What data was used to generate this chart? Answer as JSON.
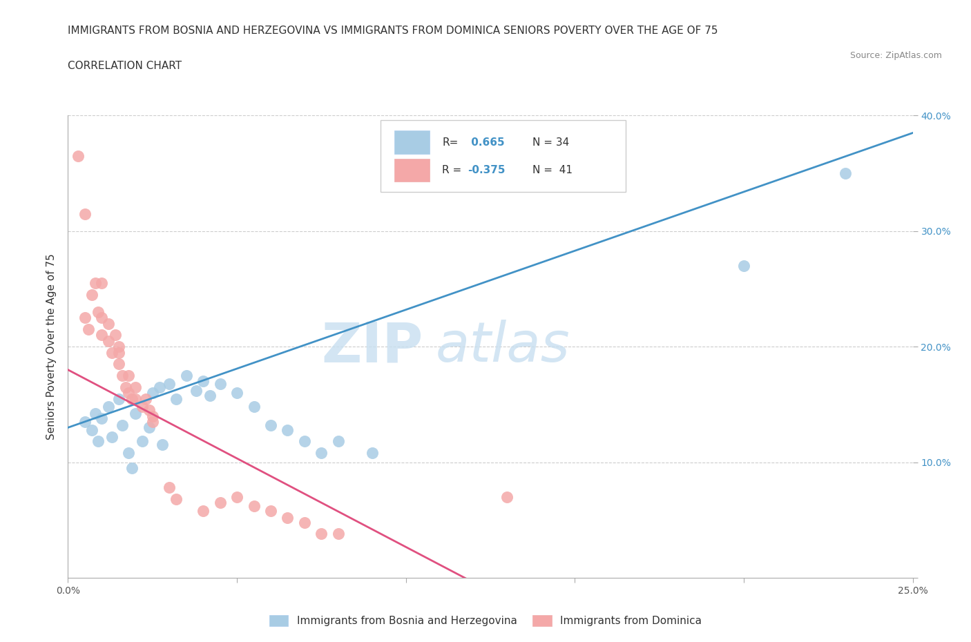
{
  "title_line1": "IMMIGRANTS FROM BOSNIA AND HERZEGOVINA VS IMMIGRANTS FROM DOMINICA SENIORS POVERTY OVER THE AGE OF 75",
  "title_line2": "CORRELATION CHART",
  "source_text": "Source: ZipAtlas.com",
  "ylabel": "Seniors Poverty Over the Age of 75",
  "xlim": [
    0.0,
    0.25
  ],
  "ylim": [
    0.0,
    0.4
  ],
  "watermark_zip": "ZIP",
  "watermark_atlas": "atlas",
  "legend_blue_label": "Immigrants from Bosnia and Herzegovina",
  "legend_pink_label": "Immigrants from Dominica",
  "blue_color": "#a8cce4",
  "pink_color": "#f4a8a8",
  "blue_line_color": "#4292c6",
  "pink_line_color": "#e05080",
  "blue_r_text": "R=",
  "blue_r_val": " 0.665",
  "blue_n_text": "N = 34",
  "pink_r_text": "R =",
  "pink_r_val": "-0.375",
  "pink_n_text": "N =  41",
  "blue_points": [
    [
      0.005,
      0.135
    ],
    [
      0.007,
      0.128
    ],
    [
      0.008,
      0.142
    ],
    [
      0.009,
      0.118
    ],
    [
      0.01,
      0.138
    ],
    [
      0.012,
      0.148
    ],
    [
      0.013,
      0.122
    ],
    [
      0.015,
      0.155
    ],
    [
      0.016,
      0.132
    ],
    [
      0.018,
      0.108
    ],
    [
      0.019,
      0.095
    ],
    [
      0.02,
      0.142
    ],
    [
      0.022,
      0.118
    ],
    [
      0.024,
      0.13
    ],
    [
      0.025,
      0.16
    ],
    [
      0.027,
      0.165
    ],
    [
      0.028,
      0.115
    ],
    [
      0.03,
      0.168
    ],
    [
      0.032,
      0.155
    ],
    [
      0.035,
      0.175
    ],
    [
      0.038,
      0.162
    ],
    [
      0.04,
      0.17
    ],
    [
      0.042,
      0.158
    ],
    [
      0.045,
      0.168
    ],
    [
      0.05,
      0.16
    ],
    [
      0.055,
      0.148
    ],
    [
      0.06,
      0.132
    ],
    [
      0.065,
      0.128
    ],
    [
      0.07,
      0.118
    ],
    [
      0.075,
      0.108
    ],
    [
      0.08,
      0.118
    ],
    [
      0.09,
      0.108
    ],
    [
      0.2,
      0.27
    ],
    [
      0.23,
      0.35
    ]
  ],
  "pink_points": [
    [
      0.003,
      0.365
    ],
    [
      0.005,
      0.315
    ],
    [
      0.005,
      0.225
    ],
    [
      0.006,
      0.215
    ],
    [
      0.007,
      0.245
    ],
    [
      0.008,
      0.255
    ],
    [
      0.009,
      0.23
    ],
    [
      0.01,
      0.255
    ],
    [
      0.01,
      0.225
    ],
    [
      0.01,
      0.21
    ],
    [
      0.012,
      0.22
    ],
    [
      0.012,
      0.205
    ],
    [
      0.013,
      0.195
    ],
    [
      0.014,
      0.21
    ],
    [
      0.015,
      0.2
    ],
    [
      0.015,
      0.195
    ],
    [
      0.015,
      0.185
    ],
    [
      0.016,
      0.175
    ],
    [
      0.017,
      0.165
    ],
    [
      0.018,
      0.175
    ],
    [
      0.018,
      0.16
    ],
    [
      0.019,
      0.155
    ],
    [
      0.02,
      0.165
    ],
    [
      0.02,
      0.155
    ],
    [
      0.022,
      0.148
    ],
    [
      0.023,
      0.155
    ],
    [
      0.024,
      0.145
    ],
    [
      0.025,
      0.14
    ],
    [
      0.025,
      0.135
    ],
    [
      0.03,
      0.078
    ],
    [
      0.032,
      0.068
    ],
    [
      0.04,
      0.058
    ],
    [
      0.045,
      0.065
    ],
    [
      0.05,
      0.07
    ],
    [
      0.055,
      0.062
    ],
    [
      0.06,
      0.058
    ],
    [
      0.065,
      0.052
    ],
    [
      0.07,
      0.048
    ],
    [
      0.075,
      0.038
    ],
    [
      0.08,
      0.038
    ],
    [
      0.13,
      0.07
    ]
  ],
  "grid_color": "#cccccc",
  "background_color": "#ffffff",
  "title_fontsize": 11,
  "axis_label_fontsize": 11,
  "tick_fontsize": 10,
  "legend_fontsize": 11
}
